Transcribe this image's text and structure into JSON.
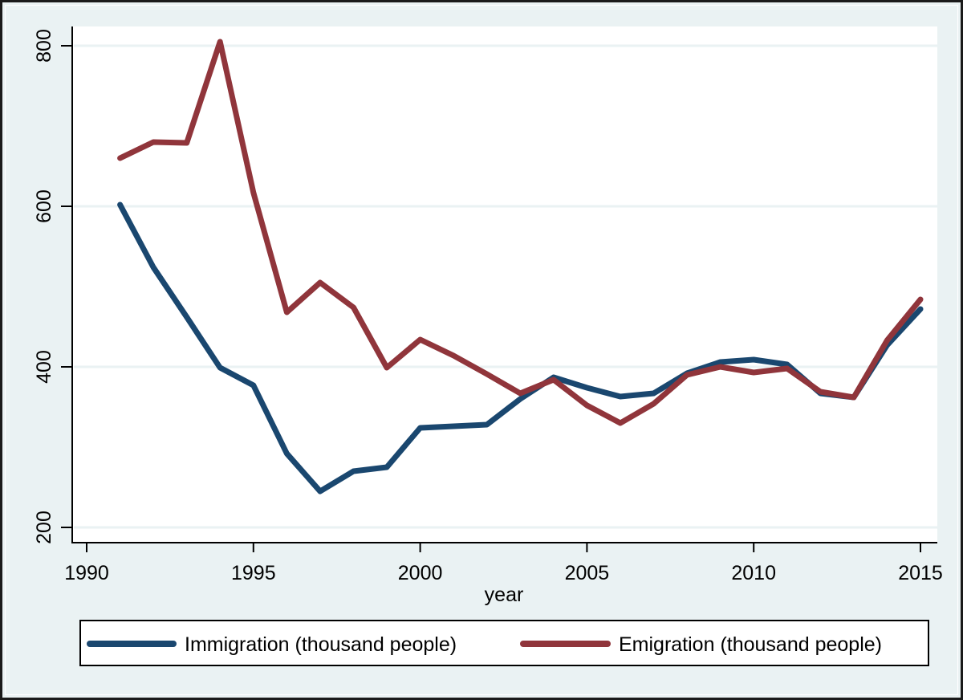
{
  "chart_data": {
    "type": "line",
    "title": "",
    "xlabel": "year",
    "ylabel": "",
    "xlim": [
      1989.6,
      2015.5
    ],
    "ylim": [
      181,
      824
    ],
    "x_ticks": [
      1990,
      1995,
      2000,
      2005,
      2010,
      2015
    ],
    "x_tick_labels": [
      "1990",
      "1995",
      "2000",
      "2005",
      "2010",
      "2015"
    ],
    "y_ticks": [
      200,
      400,
      600,
      800
    ],
    "y_tick_labels": [
      "200",
      "400",
      "600",
      "800"
    ],
    "grid": true,
    "legend_position": "bottom",
    "x": [
      1991,
      1992,
      1993,
      1994,
      1995,
      1996,
      1997,
      1998,
      1999,
      2000,
      2001,
      2002,
      2003,
      2004,
      2005,
      2006,
      2007,
      2008,
      2009,
      2010,
      2011,
      2012,
      2013,
      2014,
      2015
    ],
    "series": [
      {
        "name": "Immigration (thousand people)",
        "color": "#1a476f",
        "values": [
          602,
          524,
          462,
          399,
          377,
          292,
          245,
          270,
          275,
          324,
          326,
          328,
          360,
          387,
          374,
          363,
          367,
          392,
          406,
          409,
          403,
          367,
          362,
          427,
          472
        ]
      },
      {
        "name": "Emigration (thousand people)",
        "color": "#90353b",
        "values": [
          660,
          680,
          679,
          805,
          617,
          468,
          505,
          474,
          399,
          434,
          414,
          391,
          367,
          384,
          352,
          330,
          354,
          390,
          400,
          393,
          398,
          369,
          362,
          433,
          484
        ]
      }
    ]
  },
  "colors": {
    "background": "#eaf2f3",
    "plot_background": "#ffffff",
    "gridline": "#eaf2f3",
    "axis": "#000000"
  }
}
